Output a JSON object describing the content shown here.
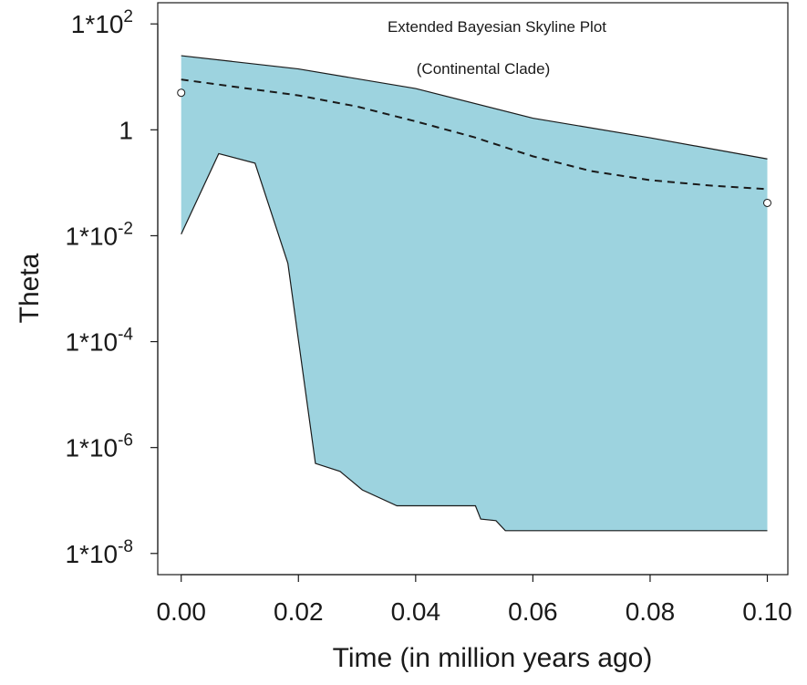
{
  "chart_data": {
    "type": "area",
    "title": "Extended Bayesian Skyline Plot",
    "subtitle": "(Continental Clade)",
    "xlabel": "Time (in million years ago)",
    "ylabel": "Theta",
    "xlim": [
      -0.004,
      0.1035
    ],
    "ylim": [
      -8.4,
      2.4
    ],
    "y_scale": "log10",
    "x_ticks": [
      {
        "value": 0.0,
        "label": "0.00"
      },
      {
        "value": 0.02,
        "label": "0.02"
      },
      {
        "value": 0.04,
        "label": "0.04"
      },
      {
        "value": 0.06,
        "label": "0.06"
      },
      {
        "value": 0.08,
        "label": "0.08"
      },
      {
        "value": 0.1,
        "label": "0.10"
      }
    ],
    "y_ticks": [
      {
        "log10": 2,
        "base": "1*10",
        "exp": "2"
      },
      {
        "log10": 0,
        "base": "1",
        "exp": ""
      },
      {
        "log10": -2,
        "base": "1*10",
        "exp": "-2"
      },
      {
        "log10": -4,
        "base": "1*10",
        "exp": "-4"
      },
      {
        "log10": -6,
        "base": "1*10",
        "exp": "-6"
      },
      {
        "log10": -8,
        "base": "1*10",
        "exp": "-8"
      }
    ],
    "grid": false,
    "fill_color": "#9dd3df",
    "line_color": "#1a1a1a",
    "upper_hpd": {
      "x": [
        0.0,
        0.02,
        0.04,
        0.06,
        0.08,
        0.1
      ],
      "log10_theta": [
        1.4,
        1.15,
        0.78,
        0.22,
        -0.15,
        -0.55
      ]
    },
    "lower_hpd": {
      "x": [
        0.0,
        0.0064,
        0.0126,
        0.0182,
        0.0229,
        0.0271,
        0.0309,
        0.0368,
        0.0502,
        0.0511,
        0.0537,
        0.0553,
        0.1
      ],
      "log10_theta": [
        -1.97,
        -0.45,
        -0.63,
        -2.52,
        -6.3,
        -6.45,
        -6.8,
        -7.1,
        -7.1,
        -7.35,
        -7.38,
        -7.57,
        -7.57
      ]
    },
    "median": {
      "x": [
        0.0,
        0.01,
        0.02,
        0.03,
        0.04,
        0.05,
        0.06,
        0.07,
        0.08,
        0.09,
        0.1
      ],
      "log10_theta": [
        0.95,
        0.8,
        0.65,
        0.44,
        0.16,
        -0.14,
        -0.5,
        -0.78,
        -0.95,
        -1.05,
        -1.12
      ]
    },
    "open_points": [
      {
        "x": 0.0,
        "log10_theta": 0.7
      },
      {
        "x": 0.1,
        "log10_theta": -1.38
      }
    ]
  }
}
